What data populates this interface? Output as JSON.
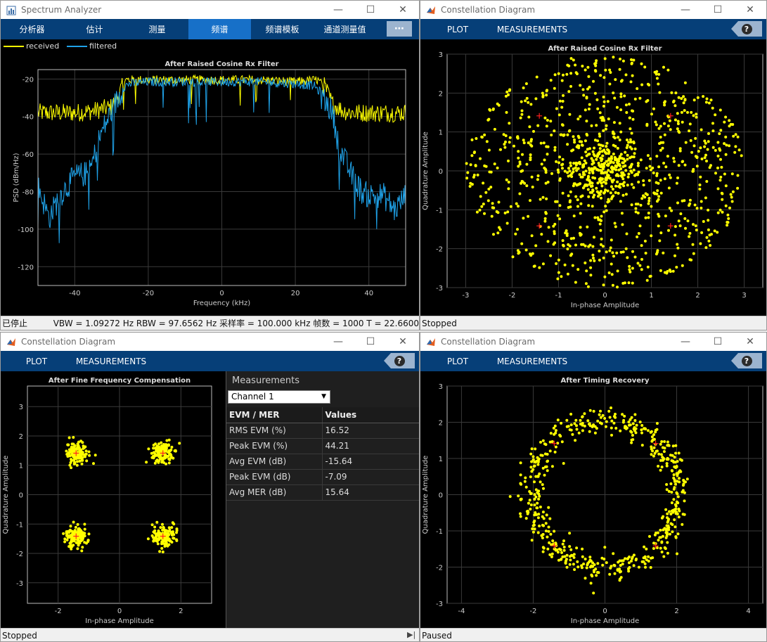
{
  "spectrum": {
    "title": "Spectrum Analyzer",
    "tabs": [
      "分析器",
      "估计",
      "测量",
      "频谱",
      "频谱模板",
      "通道测量值"
    ],
    "active_tab": "频谱",
    "legend": [
      {
        "name": "received",
        "color": "#ffff00"
      },
      {
        "name": "filtered",
        "color": "#1fa2e8"
      }
    ],
    "status_left": "已停止",
    "status_right": "VBW = 1.09272 Hz  RBW = 97.6562 Hz  采样率 = 100.000 kHz  帧数 = 1000  T = 22.6600",
    "more_icon": "⋯"
  },
  "constellation_tr": {
    "title": "Constellation Diagram",
    "tabs": [
      "PLOT",
      "MEASUREMENTS"
    ],
    "status": "Stopped"
  },
  "constellation_bl": {
    "title": "Constellation Diagram",
    "tabs": [
      "PLOT",
      "MEASUREMENTS"
    ],
    "status": "Stopped",
    "measurements": {
      "header": "Measurements",
      "channel": "Channel 1",
      "col1": "EVM / MER",
      "col2": "Values",
      "rows": [
        {
          "label": "RMS EVM (%)",
          "value": "16.52"
        },
        {
          "label": "Peak EVM (%)",
          "value": "44.21"
        },
        {
          "label": "Avg EVM (dB)",
          "value": "-15.64"
        },
        {
          "label": "Peak EVM (dB)",
          "value": "-7.09"
        },
        {
          "label": "Avg MER (dB)",
          "value": "15.64"
        }
      ]
    }
  },
  "constellation_br": {
    "title": "Constellation Diagram",
    "tabs": [
      "PLOT",
      "MEASUREMENTS"
    ],
    "status": "Paused"
  },
  "chart_data": [
    {
      "type": "line",
      "title": "After Raised Cosine Rx Filter",
      "xlabel": "Frequency (kHz)",
      "ylabel": "PSD (dBm/Hz)",
      "xlim": [
        -50,
        50
      ],
      "ylim": [
        -130,
        -15
      ],
      "xticks": [
        -40,
        -20,
        0,
        20,
        40
      ],
      "yticks": [
        -20,
        -40,
        -60,
        -80,
        -100,
        -120
      ],
      "grid": true,
      "legend": "top-left",
      "series": [
        {
          "name": "received",
          "color": "#ffff00",
          "x": [
            -50,
            -45,
            -40,
            -35,
            -30,
            -28,
            -26,
            -20,
            -10,
            0,
            10,
            20,
            26,
            28,
            30,
            33,
            36,
            40,
            45,
            50
          ],
          "values": [
            -38,
            -38,
            -38,
            -37,
            -35,
            -28,
            -20,
            -20,
            -20,
            -20,
            -20,
            -21,
            -20,
            -24,
            -33,
            -37,
            -38,
            -38,
            -38,
            -38
          ]
        },
        {
          "name": "filtered",
          "color": "#1fa2e8",
          "x": [
            -50,
            -47,
            -44,
            -40,
            -36,
            -33,
            -30,
            -27,
            -25,
            -20,
            -10,
            0,
            10,
            20,
            25,
            27,
            30,
            32,
            35,
            38,
            40,
            44,
            47,
            50
          ],
          "values": [
            -75,
            -92,
            -80,
            -70,
            -68,
            -48,
            -35,
            -24,
            -22,
            -21,
            -21,
            -21,
            -21,
            -22,
            -23,
            -27,
            -35,
            -55,
            -68,
            -78,
            -80,
            -80,
            -88,
            -80
          ]
        }
      ]
    },
    {
      "type": "scatter",
      "title": "After Raised Cosine Rx Filter",
      "xlabel": "In-phase Amplitude",
      "ylabel": "Quadrature Amplitude",
      "xlim": [
        -3.4,
        3.4
      ],
      "ylim": [
        -3,
        3
      ],
      "xticks": [
        -3,
        -2,
        -1,
        0,
        1,
        2,
        3
      ],
      "yticks": [
        3,
        2,
        1,
        0,
        -1,
        -2,
        -3
      ],
      "grid": true,
      "reference_points": [
        [
          -1.414,
          1.414
        ],
        [
          1.414,
          1.414
        ],
        [
          -1.414,
          -1.414
        ],
        [
          1.414,
          -1.414
        ]
      ],
      "series": [
        {
          "color": "#ffff00",
          "distribution": "diffuse cloud of received symbols within radius ~3"
        }
      ]
    },
    {
      "type": "scatter",
      "title": "After Fine Frequency Compensation",
      "xlabel": "In-phase Amplitude",
      "ylabel": "Quadrature Amplitude",
      "xlim": [
        -3,
        3
      ],
      "ylim": [
        -3.7,
        3.7
      ],
      "xticks": [
        -2,
        0,
        2
      ],
      "yticks": [
        3,
        2,
        1,
        0,
        -1,
        -2,
        -3
      ],
      "grid": true,
      "reference_points": [
        [
          -1.414,
          1.414
        ],
        [
          1.414,
          1.414
        ],
        [
          -1.414,
          -1.414
        ],
        [
          1.414,
          -1.414
        ]
      ],
      "series": [
        {
          "color": "#ffff00",
          "distribution": "four QPSK clusters at (±1.4, ±1.4)"
        }
      ]
    },
    {
      "type": "scatter",
      "title": "After Timing Recovery",
      "xlabel": "In-phase Amplitude",
      "ylabel": "Quadrature Amplitude",
      "xlim": [
        -4.4,
        4.4
      ],
      "ylim": [
        -3,
        3
      ],
      "xticks": [
        -4,
        -2,
        0,
        2,
        4
      ],
      "yticks": [
        3,
        2,
        1,
        0,
        -1,
        -2,
        -3
      ],
      "grid": true,
      "reference_points": [
        [
          -1.414,
          1.414
        ],
        [
          1.414,
          1.414
        ],
        [
          -1.414,
          -1.414
        ],
        [
          1.414,
          -1.414
        ]
      ],
      "series": [
        {
          "color": "#ffff00",
          "distribution": "ring of radius ~2"
        }
      ]
    }
  ]
}
